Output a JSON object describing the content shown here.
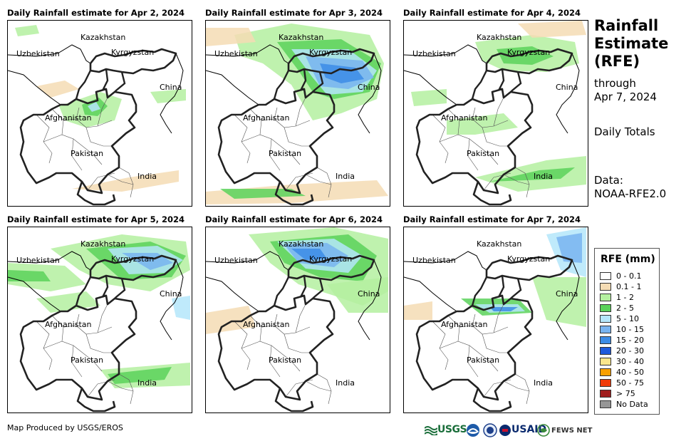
{
  "panels": [
    {
      "title": "Daily Rainfall estimate for Apr 2, 2024"
    },
    {
      "title": "Daily Rainfall estimate for Apr 3, 2024"
    },
    {
      "title": "Daily Rainfall estimate for Apr 4, 2024"
    },
    {
      "title": "Daily Rainfall estimate for Apr 5, 2024"
    },
    {
      "title": "Daily Rainfall estimate for Apr 6, 2024"
    },
    {
      "title": "Daily Rainfall estimate for Apr 7, 2024"
    }
  ],
  "map_labels": {
    "kazakhstan": "Kazakhstan",
    "uzbekistan": "Uzbekistan",
    "kyrgyzstan": "Kyrgyzstan",
    "china": "China",
    "afghanistan": "Afghanistan",
    "pakistan": "Pakistan",
    "india": "India"
  },
  "side": {
    "title_lines": [
      "Rainfall",
      "Estimate",
      "(RFE)"
    ],
    "through": "through",
    "date": "Apr 7, 2024",
    "totals": "Daily Totals",
    "data_label": "Data:",
    "data_source": "NOAA-RFE2.0"
  },
  "legend": {
    "title": "RFE (mm)",
    "items": [
      {
        "label": "0 - 0.1",
        "color": "#ffffff"
      },
      {
        "label": "0.1 - 1",
        "color": "#f5dcb4"
      },
      {
        "label": "1 - 2",
        "color": "#b4f0a0"
      },
      {
        "label": "2 - 5",
        "color": "#5ad25a"
      },
      {
        "label": "5 - 10",
        "color": "#b4e6fa"
      },
      {
        "label": "10 - 15",
        "color": "#78b4f0"
      },
      {
        "label": "15 - 20",
        "color": "#3c8ce6"
      },
      {
        "label": "20 - 30",
        "color": "#1e5adc"
      },
      {
        "label": "30 - 40",
        "color": "#fae68c"
      },
      {
        "label": "40 - 50",
        "color": "#faa000"
      },
      {
        "label": "50 - 75",
        "color": "#f03c0a"
      },
      {
        "label": "> 75",
        "color": "#a01e1e"
      },
      {
        "label": "No Data",
        "color": "#969696"
      }
    ]
  },
  "credit": "Map Produced by USGS/EROS",
  "logos": {
    "usgs": "USGS",
    "usaid": "USAID",
    "fewsnet": "FEWS NET"
  }
}
